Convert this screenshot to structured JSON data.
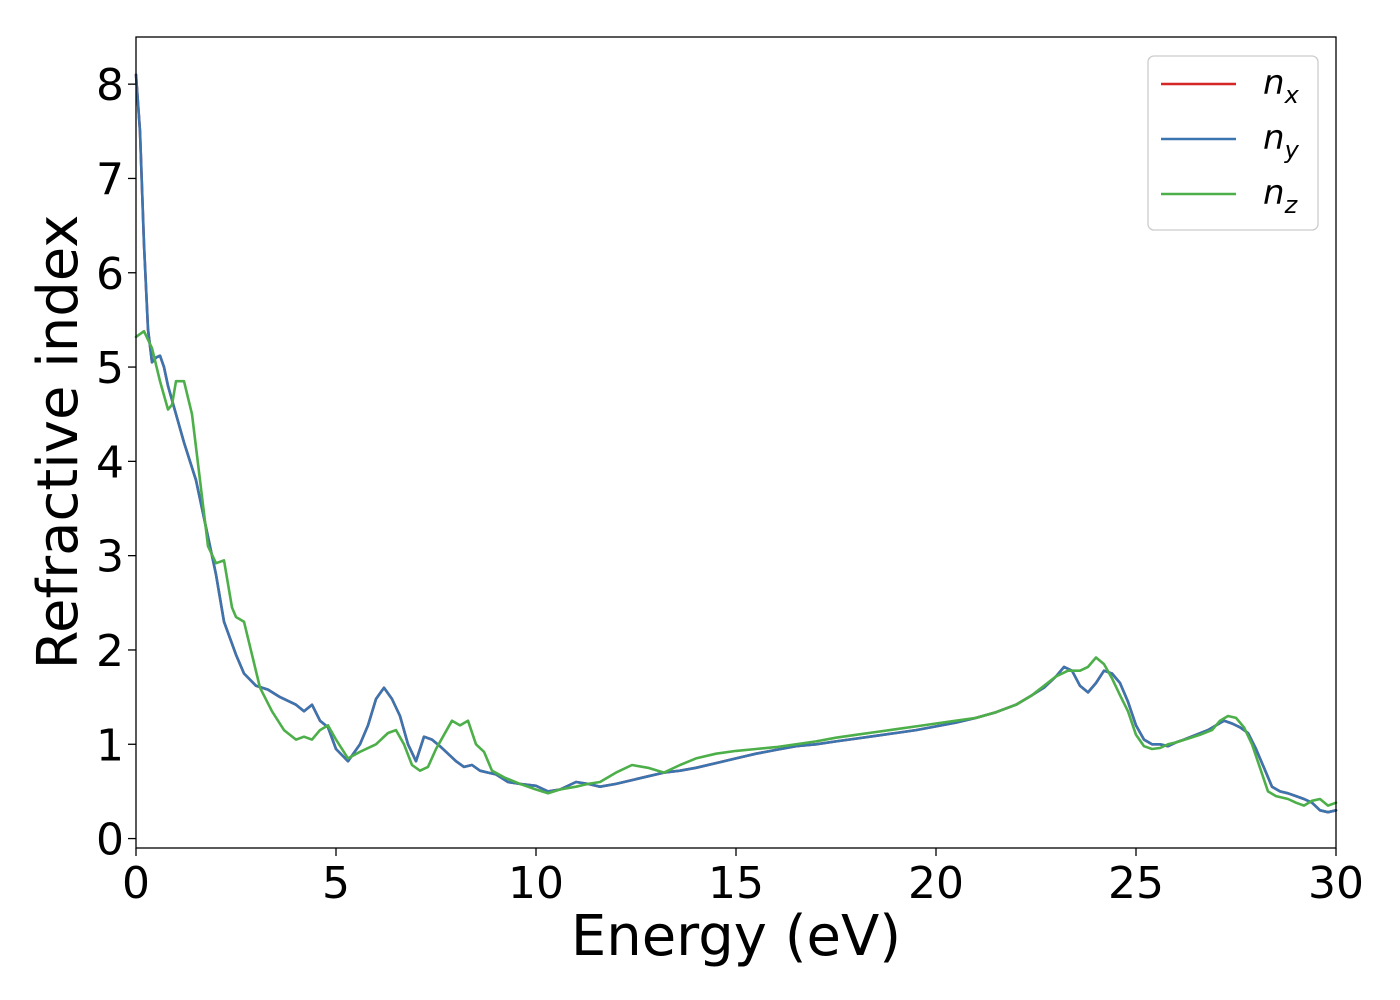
{
  "chart_data": {
    "type": "line",
    "xlabel": "Energy (eV)",
    "ylabel": "Refractive index",
    "xlim": [
      0,
      30
    ],
    "ylim": [
      -0.1,
      8.5
    ],
    "xticks": [
      0,
      5,
      10,
      15,
      20,
      25,
      30
    ],
    "yticks": [
      0,
      1,
      2,
      3,
      4,
      5,
      6,
      7,
      8
    ],
    "grid": false,
    "legend_position": "top-right",
    "series": [
      {
        "name": "n_x",
        "legend_base": "n",
        "legend_sub": "x",
        "color": "#d62728",
        "x": [
          0,
          0.1,
          0.2,
          0.3,
          0.4,
          0.5,
          0.6,
          0.7,
          0.8,
          1.0,
          1.2,
          1.5,
          1.8,
          2.0,
          2.2,
          2.5,
          2.7,
          3.0,
          3.3,
          3.6,
          4.0,
          4.2,
          4.4,
          4.6,
          4.8,
          5.0,
          5.3,
          5.6,
          5.8,
          6.0,
          6.2,
          6.4,
          6.6,
          6.8,
          7.0,
          7.2,
          7.4,
          7.6,
          7.8,
          8.0,
          8.2,
          8.4,
          8.6,
          8.8,
          9.0,
          9.3,
          9.6,
          10.0,
          10.3,
          10.6,
          11.0,
          11.3,
          11.6,
          12.0,
          12.4,
          12.8,
          13.2,
          13.6,
          14.0,
          14.5,
          15.0,
          15.5,
          16.0,
          16.5,
          17.0,
          17.5,
          18.0,
          18.5,
          19.0,
          19.5,
          20.0,
          20.5,
          21.0,
          21.5,
          22.0,
          22.4,
          22.7,
          23.0,
          23.2,
          23.4,
          23.6,
          23.8,
          24.0,
          24.2,
          24.4,
          24.6,
          24.8,
          25.0,
          25.2,
          25.4,
          25.6,
          25.8,
          26.0,
          26.2,
          26.5,
          26.8,
          27.0,
          27.2,
          27.4,
          27.6,
          27.8,
          28.0,
          28.2,
          28.4,
          28.6,
          28.8,
          29.0,
          29.2,
          29.4,
          29.6,
          29.8,
          30.0
        ],
        "values": [
          8.1,
          7.5,
          6.3,
          5.4,
          5.05,
          5.1,
          5.12,
          5.0,
          4.8,
          4.5,
          4.2,
          3.8,
          3.2,
          2.8,
          2.3,
          1.95,
          1.75,
          1.62,
          1.58,
          1.5,
          1.42,
          1.35,
          1.42,
          1.25,
          1.18,
          0.95,
          0.82,
          1.0,
          1.2,
          1.48,
          1.6,
          1.48,
          1.3,
          1.0,
          0.82,
          1.08,
          1.05,
          0.98,
          0.9,
          0.82,
          0.76,
          0.78,
          0.72,
          0.7,
          0.68,
          0.6,
          0.58,
          0.56,
          0.5,
          0.52,
          0.6,
          0.58,
          0.55,
          0.58,
          0.62,
          0.66,
          0.7,
          0.72,
          0.75,
          0.8,
          0.85,
          0.9,
          0.94,
          0.98,
          1.0,
          1.03,
          1.06,
          1.09,
          1.12,
          1.15,
          1.19,
          1.23,
          1.28,
          1.34,
          1.42,
          1.52,
          1.6,
          1.72,
          1.82,
          1.78,
          1.62,
          1.55,
          1.65,
          1.78,
          1.75,
          1.65,
          1.45,
          1.2,
          1.05,
          1.0,
          1.0,
          0.98,
          1.02,
          1.05,
          1.1,
          1.15,
          1.2,
          1.25,
          1.22,
          1.18,
          1.12,
          0.95,
          0.75,
          0.55,
          0.5,
          0.48,
          0.45,
          0.42,
          0.38,
          0.3,
          0.28,
          0.3
        ]
      },
      {
        "name": "n_y",
        "legend_base": "n",
        "legend_sub": "y",
        "color": "#3a75b0",
        "x": [
          0,
          0.1,
          0.2,
          0.3,
          0.4,
          0.5,
          0.6,
          0.7,
          0.8,
          1.0,
          1.2,
          1.5,
          1.8,
          2.0,
          2.2,
          2.5,
          2.7,
          3.0,
          3.3,
          3.6,
          4.0,
          4.2,
          4.4,
          4.6,
          4.8,
          5.0,
          5.3,
          5.6,
          5.8,
          6.0,
          6.2,
          6.4,
          6.6,
          6.8,
          7.0,
          7.2,
          7.4,
          7.6,
          7.8,
          8.0,
          8.2,
          8.4,
          8.6,
          8.8,
          9.0,
          9.3,
          9.6,
          10.0,
          10.3,
          10.6,
          11.0,
          11.3,
          11.6,
          12.0,
          12.4,
          12.8,
          13.2,
          13.6,
          14.0,
          14.5,
          15.0,
          15.5,
          16.0,
          16.5,
          17.0,
          17.5,
          18.0,
          18.5,
          19.0,
          19.5,
          20.0,
          20.5,
          21.0,
          21.5,
          22.0,
          22.4,
          22.7,
          23.0,
          23.2,
          23.4,
          23.6,
          23.8,
          24.0,
          24.2,
          24.4,
          24.6,
          24.8,
          25.0,
          25.2,
          25.4,
          25.6,
          25.8,
          26.0,
          26.2,
          26.5,
          26.8,
          27.0,
          27.2,
          27.4,
          27.6,
          27.8,
          28.0,
          28.2,
          28.4,
          28.6,
          28.8,
          29.0,
          29.2,
          29.4,
          29.6,
          29.8,
          30.0
        ],
        "values": [
          8.1,
          7.5,
          6.3,
          5.4,
          5.05,
          5.1,
          5.12,
          5.0,
          4.8,
          4.5,
          4.2,
          3.8,
          3.2,
          2.8,
          2.3,
          1.95,
          1.75,
          1.62,
          1.58,
          1.5,
          1.42,
          1.35,
          1.42,
          1.25,
          1.18,
          0.95,
          0.82,
          1.0,
          1.2,
          1.48,
          1.6,
          1.48,
          1.3,
          1.0,
          0.82,
          1.08,
          1.05,
          0.98,
          0.9,
          0.82,
          0.76,
          0.78,
          0.72,
          0.7,
          0.68,
          0.6,
          0.58,
          0.56,
          0.5,
          0.52,
          0.6,
          0.58,
          0.55,
          0.58,
          0.62,
          0.66,
          0.7,
          0.72,
          0.75,
          0.8,
          0.85,
          0.9,
          0.94,
          0.98,
          1.0,
          1.03,
          1.06,
          1.09,
          1.12,
          1.15,
          1.19,
          1.23,
          1.28,
          1.34,
          1.42,
          1.52,
          1.6,
          1.72,
          1.82,
          1.78,
          1.62,
          1.55,
          1.65,
          1.78,
          1.75,
          1.65,
          1.45,
          1.2,
          1.05,
          1.0,
          1.0,
          0.98,
          1.02,
          1.05,
          1.1,
          1.15,
          1.2,
          1.25,
          1.22,
          1.18,
          1.12,
          0.95,
          0.75,
          0.55,
          0.5,
          0.48,
          0.45,
          0.42,
          0.38,
          0.3,
          0.28,
          0.3
        ]
      },
      {
        "name": "n_z",
        "legend_base": "n",
        "legend_sub": "z",
        "color": "#4daf4a",
        "x": [
          0,
          0.2,
          0.4,
          0.6,
          0.8,
          0.9,
          1.0,
          1.2,
          1.4,
          1.6,
          1.8,
          2.0,
          2.2,
          2.4,
          2.5,
          2.7,
          2.9,
          3.1,
          3.4,
          3.7,
          4.0,
          4.2,
          4.4,
          4.6,
          4.8,
          5.0,
          5.3,
          5.6,
          6.0,
          6.3,
          6.5,
          6.7,
          6.9,
          7.1,
          7.3,
          7.5,
          7.7,
          7.9,
          8.1,
          8.3,
          8.5,
          8.7,
          8.9,
          9.2,
          9.6,
          10.0,
          10.3,
          10.6,
          11.0,
          11.3,
          11.6,
          12.0,
          12.4,
          12.8,
          13.2,
          13.6,
          14.0,
          14.5,
          15.0,
          15.5,
          16.0,
          16.5,
          17.0,
          17.5,
          18.0,
          18.5,
          19.0,
          19.5,
          20.0,
          20.5,
          21.0,
          21.5,
          22.0,
          22.4,
          22.7,
          23.0,
          23.3,
          23.6,
          23.8,
          24.0,
          24.2,
          24.4,
          24.6,
          24.8,
          25.0,
          25.2,
          25.4,
          25.6,
          25.8,
          26.0,
          26.3,
          26.6,
          26.9,
          27.1,
          27.3,
          27.5,
          27.7,
          27.9,
          28.1,
          28.3,
          28.5,
          28.8,
          29.0,
          29.2,
          29.4,
          29.6,
          29.8,
          30.0
        ],
        "values": [
          5.32,
          5.38,
          5.2,
          4.85,
          4.55,
          4.6,
          4.85,
          4.85,
          4.5,
          3.8,
          3.1,
          2.92,
          2.95,
          2.45,
          2.35,
          2.3,
          1.95,
          1.6,
          1.35,
          1.15,
          1.05,
          1.08,
          1.05,
          1.15,
          1.2,
          1.05,
          0.85,
          0.92,
          1.0,
          1.12,
          1.15,
          1.0,
          0.78,
          0.72,
          0.76,
          0.95,
          1.1,
          1.25,
          1.2,
          1.25,
          1.0,
          0.92,
          0.72,
          0.65,
          0.58,
          0.52,
          0.48,
          0.52,
          0.55,
          0.58,
          0.6,
          0.7,
          0.78,
          0.75,
          0.7,
          0.78,
          0.85,
          0.9,
          0.93,
          0.95,
          0.97,
          1.0,
          1.03,
          1.07,
          1.1,
          1.13,
          1.16,
          1.19,
          1.22,
          1.25,
          1.28,
          1.34,
          1.42,
          1.52,
          1.62,
          1.72,
          1.78,
          1.78,
          1.82,
          1.92,
          1.85,
          1.7,
          1.52,
          1.35,
          1.1,
          0.98,
          0.95,
          0.96,
          1.0,
          1.02,
          1.06,
          1.1,
          1.15,
          1.25,
          1.3,
          1.28,
          1.18,
          1.0,
          0.75,
          0.5,
          0.45,
          0.42,
          0.38,
          0.35,
          0.4,
          0.42,
          0.35,
          0.38
        ]
      }
    ]
  }
}
